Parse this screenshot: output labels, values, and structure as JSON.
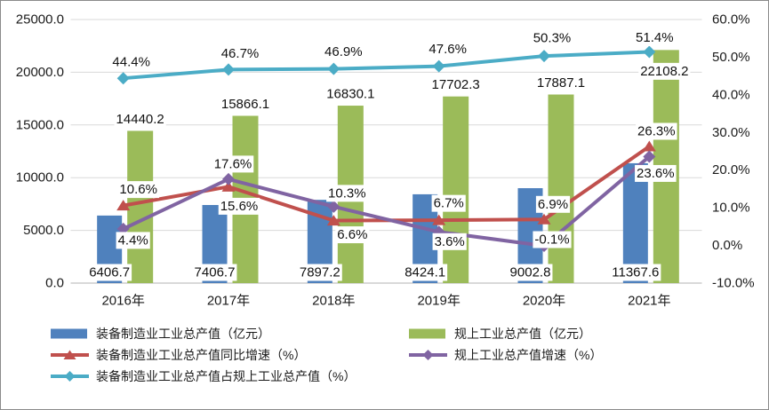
{
  "chart_data": {
    "type": "combo",
    "title": "",
    "categories": [
      "2016年",
      "2017年",
      "2018年",
      "2019年",
      "2020年",
      "2021年"
    ],
    "series": [
      {
        "name": "装备制造业工业总产值（亿元）",
        "type": "bar",
        "axis": "left",
        "color": "#4F81BD",
        "values": [
          6406.7,
          7406.7,
          7897.2,
          8424.1,
          9002.8,
          11367.6
        ],
        "labels": [
          "6406.7",
          "7406.7",
          "7897.2",
          "8424.1",
          "9002.8",
          "11367.6"
        ]
      },
      {
        "name": "规上工业总产值（亿元）",
        "type": "bar",
        "axis": "left",
        "color": "#9BBB59",
        "values": [
          14440.2,
          15866.1,
          16830.1,
          17702.3,
          17887.1,
          22108.2
        ],
        "labels": [
          "14440.2",
          "15866.1",
          "16830.1",
          "17702.3",
          "17887.1",
          "22108.2"
        ]
      },
      {
        "name": "装备制造业工业总产值同比增速（%）",
        "type": "line",
        "marker": "triangle",
        "axis": "right",
        "color": "#C0504D",
        "values": [
          10.6,
          15.6,
          6.6,
          6.7,
          6.9,
          26.3
        ],
        "labels": [
          "10.6%",
          "15.6%",
          "6.6%",
          "6.7%",
          "6.9%",
          "26.3%"
        ]
      },
      {
        "name": "规上工业总产值增速（%）",
        "type": "line",
        "marker": "diamond",
        "axis": "right",
        "color": "#8064A2",
        "values": [
          4.4,
          17.6,
          10.3,
          3.6,
          -0.1,
          23.6
        ],
        "labels": [
          "4.4%",
          "17.6%",
          "10.3%",
          "3.6%",
          "-0.1%",
          "23.6%"
        ]
      },
      {
        "name": "装备制造业工业总产值占规上工业总产值（%）",
        "type": "line",
        "marker": "diamond",
        "axis": "right",
        "color": "#4BACC6",
        "values": [
          44.4,
          46.7,
          46.9,
          47.6,
          50.3,
          51.4
        ],
        "labels": [
          "44.4%",
          "46.7%",
          "46.9%",
          "47.6%",
          "50.3%",
          "51.4%"
        ]
      }
    ],
    "left_axis": {
      "min": 0,
      "max": 25000,
      "step": 5000,
      "ticks": [
        {
          "value": 0,
          "label": "0.0"
        },
        {
          "value": 5000,
          "label": "5000.0"
        },
        {
          "value": 10000,
          "label": "10000.0"
        },
        {
          "value": 15000,
          "label": "15000.0"
        },
        {
          "value": 20000,
          "label": "20000.0"
        },
        {
          "value": 25000,
          "label": "25000.0"
        }
      ]
    },
    "right_axis": {
      "min": -10,
      "max": 60,
      "step": 10,
      "ticks": [
        {
          "value": -10,
          "label": "-10.0%"
        },
        {
          "value": 0,
          "label": "0.0%"
        },
        {
          "value": 10,
          "label": "10.0%"
        },
        {
          "value": 20,
          "label": "20.0%"
        },
        {
          "value": 30,
          "label": "30.0%"
        },
        {
          "value": 40,
          "label": "40.0%"
        },
        {
          "value": 50,
          "label": "50.0%"
        },
        {
          "value": 60,
          "label": "60.0%"
        }
      ]
    },
    "grid": true,
    "legend_position": "bottom"
  }
}
